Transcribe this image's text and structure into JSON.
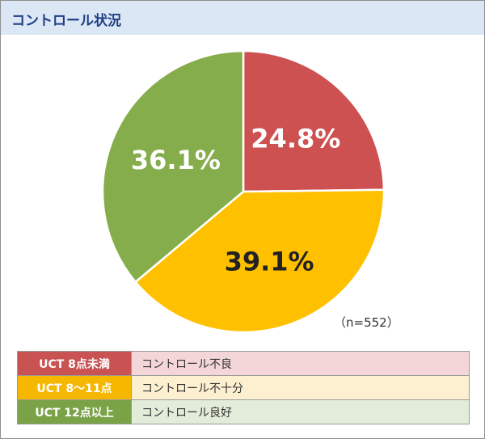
{
  "header": {
    "title": "コントロール状況"
  },
  "chart_data": {
    "type": "pie",
    "title": "",
    "start_angle_deg": 0,
    "direction": "clockwise",
    "slices": [
      {
        "label": "UCT 8点未満",
        "description": "コントロール不良",
        "value": 24.8,
        "value_label": "24.8%",
        "color": "#cd5151",
        "label_color": "#ffffff"
      },
      {
        "label": "UCT 8～11点",
        "description": "コントロール不十分",
        "value": 39.1,
        "value_label": "39.1%",
        "color": "#ffc000",
        "label_color": "#222222"
      },
      {
        "label": "UCT 12点以上",
        "description": "コントロール良好",
        "value": 36.1,
        "value_label": "36.1%",
        "color": "#85ad4b",
        "label_color": "#ffffff"
      }
    ],
    "n_label": "（n=552）"
  },
  "legend": [
    {
      "key": "UCT 8点未満",
      "desc": "コントロール不良",
      "key_color": "#c95252",
      "row_color": "#f4d6d9"
    },
    {
      "key": "UCT 8～11点",
      "desc": "コントロール不十分",
      "key_color": "#f5b700",
      "row_color": "#fdf0d0"
    },
    {
      "key": "UCT 12点以上",
      "desc": "コントロール良好",
      "key_color": "#7aa247",
      "row_color": "#e3ecd8"
    }
  ]
}
